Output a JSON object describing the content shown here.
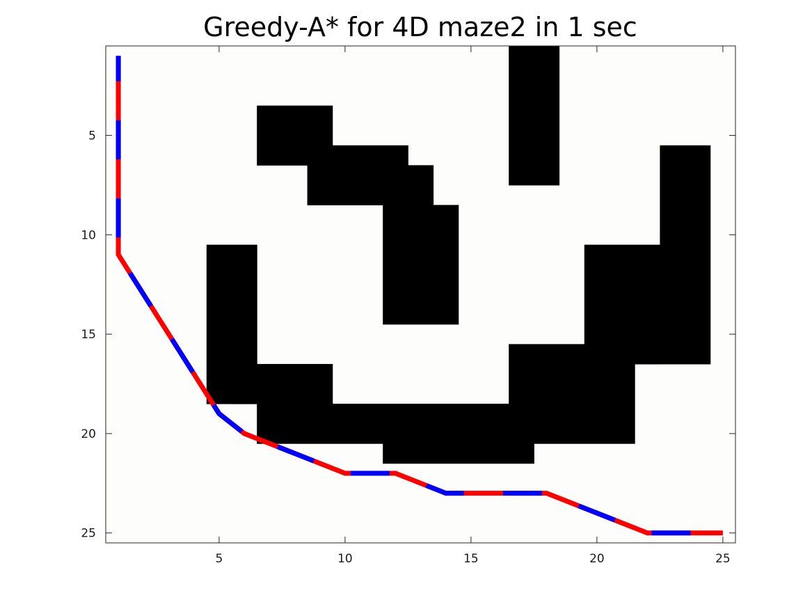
{
  "chart_data": {
    "type": "heatmap",
    "title": "Greedy-A* for 4D maze2 in 1 sec",
    "xlabel": "",
    "ylabel": "",
    "xlim": [
      0.5,
      25.5
    ],
    "ylim": [
      0.5,
      25.5
    ],
    "y_reversed": true,
    "grid": false,
    "xticks": [
      5,
      10,
      15,
      20,
      25
    ],
    "yticks": [
      5,
      10,
      15,
      20,
      25
    ],
    "colors": {
      "free": "#fdfdfb",
      "wall": "#000000",
      "path_a": "#ff0000",
      "path_b": "#0000ff"
    },
    "walls": [
      {
        "x": [
          7,
          9
        ],
        "y": [
          4,
          6
        ]
      },
      {
        "x": [
          9,
          12
        ],
        "y": [
          6,
          8
        ]
      },
      {
        "x": [
          12,
          13
        ],
        "y": [
          7,
          8
        ]
      },
      {
        "x": [
          12,
          14
        ],
        "y": [
          9,
          14
        ]
      },
      {
        "x": [
          17,
          18
        ],
        "y": [
          1,
          7
        ]
      },
      {
        "x": [
          23,
          24
        ],
        "y": [
          6,
          16
        ]
      },
      {
        "x": [
          20,
          22
        ],
        "y": [
          11,
          16
        ]
      },
      {
        "x": [
          5,
          6
        ],
        "y": [
          11,
          17
        ]
      },
      {
        "x": [
          5,
          6
        ],
        "y": [
          18,
          18
        ]
      },
      {
        "x": [
          7,
          9
        ],
        "y": [
          17,
          18
        ]
      },
      {
        "x": [
          6,
          6
        ],
        "y": [
          18,
          18
        ]
      },
      {
        "x": [
          7,
          17
        ],
        "y": [
          19,
          20
        ]
      },
      {
        "x": [
          12,
          17
        ],
        "y": [
          21,
          21
        ]
      },
      {
        "x": [
          17,
          21
        ],
        "y": [
          16,
          20
        ]
      },
      {
        "x": [
          22,
          22
        ],
        "y": [
          16,
          16
        ]
      }
    ],
    "path": [
      [
        1,
        1
      ],
      [
        1,
        11
      ],
      [
        5,
        19
      ],
      [
        6,
        20
      ],
      [
        10,
        22
      ],
      [
        12,
        22
      ],
      [
        14,
        23
      ],
      [
        18,
        23
      ],
      [
        22,
        25
      ],
      [
        25,
        25
      ]
    ],
    "path_dash_length": 1.55
  }
}
